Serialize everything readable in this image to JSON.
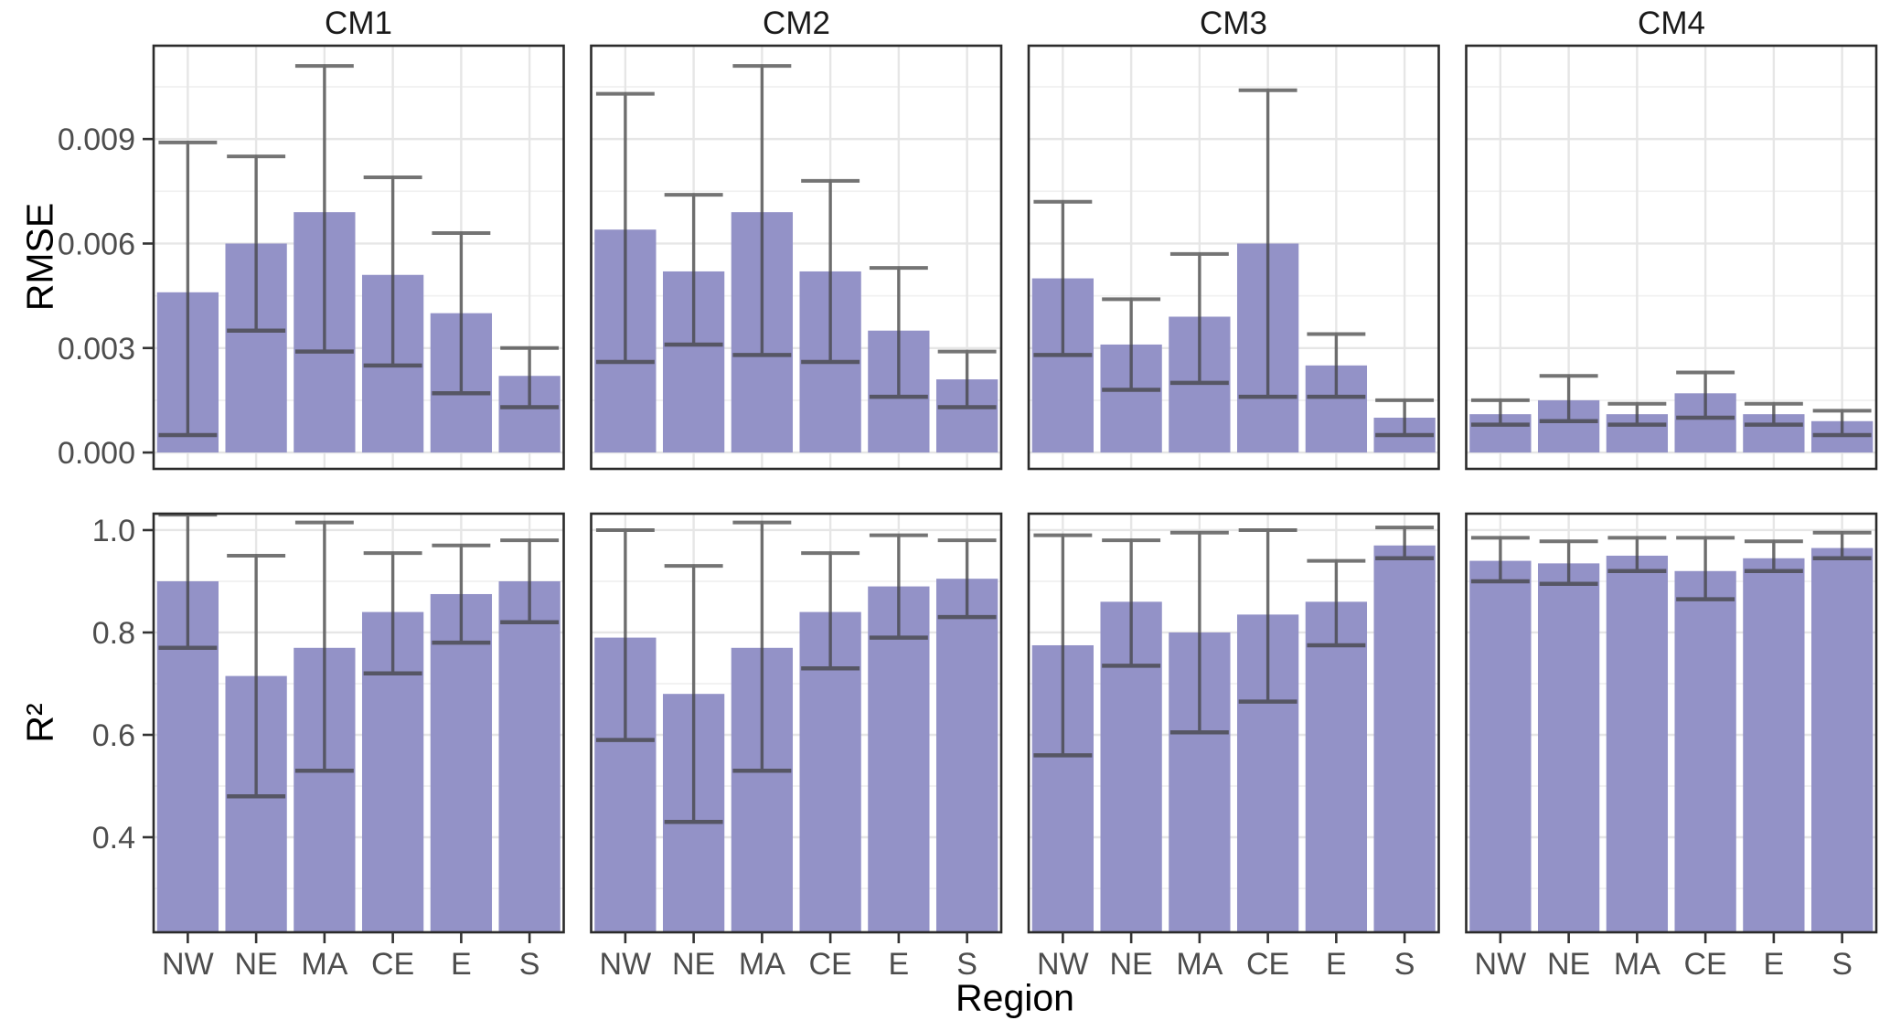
{
  "chart_data": {
    "type": "bar",
    "facet_cols": [
      "CM1",
      "CM2",
      "CM3",
      "CM4"
    ],
    "row_ids": [
      "RMSE",
      "R2"
    ],
    "row_display": [
      "RMSE",
      "R²"
    ],
    "categories": [
      "NW",
      "NE",
      "MA",
      "CE",
      "E",
      "S"
    ],
    "xlabel": "Region",
    "bar_color": "#9392C7",
    "error_color": "#3F3F3F",
    "grid_major_color": "#E6E6E6",
    "grid_minor_color": "#F1F1F1",
    "panel_border_color": "#2B2B2B",
    "tick_color": "#333333",
    "tick_label_color": "#4D4D4D",
    "axes": {
      "RMSE": {
        "tick_labels": [
          "0.000",
          "0.003",
          "0.006",
          "0.009"
        ],
        "ticks": [
          0,
          0.003,
          0.006,
          0.009
        ],
        "minor": [
          0.0015,
          0.0045,
          0.0075,
          0.0105
        ],
        "range": [
          -0.00047,
          0.01168
        ]
      },
      "R2": {
        "tick_labels": [
          "0.4",
          "0.6",
          "0.8",
          "1.0"
        ],
        "ticks": [
          0.4,
          0.6,
          0.8,
          1.0
        ],
        "minor": [
          0.3,
          0.5,
          0.7,
          0.9
        ],
        "range": [
          0.2143,
          1.0321
        ]
      }
    },
    "panels": [
      {
        "row": "RMSE",
        "col": "CM1",
        "values": [
          0.0046,
          0.006,
          0.0069,
          0.0051,
          0.004,
          0.0022
        ],
        "err_low": [
          0.0005,
          0.0035,
          0.0029,
          0.0025,
          0.0017,
          0.0013
        ],
        "err_high": [
          0.0089,
          0.0085,
          0.0111,
          0.0079,
          0.0063,
          0.003
        ]
      },
      {
        "row": "RMSE",
        "col": "CM2",
        "values": [
          0.0064,
          0.0052,
          0.0069,
          0.0052,
          0.0035,
          0.0021
        ],
        "err_low": [
          0.0026,
          0.0031,
          0.0028,
          0.0026,
          0.0016,
          0.0013
        ],
        "err_high": [
          0.0103,
          0.0074,
          0.0111,
          0.0078,
          0.0053,
          0.0029
        ]
      },
      {
        "row": "RMSE",
        "col": "CM3",
        "values": [
          0.005,
          0.0031,
          0.0039,
          0.006,
          0.0025,
          0.001
        ],
        "err_low": [
          0.0028,
          0.0018,
          0.002,
          0.0016,
          0.0016,
          0.0005
        ],
        "err_high": [
          0.0072,
          0.0044,
          0.0057,
          0.0104,
          0.0034,
          0.0015
        ]
      },
      {
        "row": "RMSE",
        "col": "CM4",
        "values": [
          0.0011,
          0.0015,
          0.0011,
          0.0017,
          0.0011,
          0.0009
        ],
        "err_low": [
          0.0008,
          0.0009,
          0.0008,
          0.001,
          0.0008,
          0.0005
        ],
        "err_high": [
          0.0015,
          0.0022,
          0.0014,
          0.0023,
          0.0014,
          0.0012
        ]
      },
      {
        "row": "R2",
        "col": "CM1",
        "values": [
          0.9,
          0.715,
          0.77,
          0.84,
          0.875,
          0.9
        ],
        "err_low": [
          0.77,
          0.48,
          0.53,
          0.72,
          0.78,
          0.82
        ],
        "err_high": [
          1.03,
          0.95,
          1.015,
          0.955,
          0.97,
          0.98
        ]
      },
      {
        "row": "R2",
        "col": "CM2",
        "values": [
          0.79,
          0.68,
          0.77,
          0.84,
          0.89,
          0.905
        ],
        "err_low": [
          0.59,
          0.43,
          0.53,
          0.73,
          0.79,
          0.83
        ],
        "err_high": [
          1.0,
          0.93,
          1.015,
          0.955,
          0.99,
          0.98
        ]
      },
      {
        "row": "R2",
        "col": "CM3",
        "values": [
          0.775,
          0.86,
          0.8,
          0.835,
          0.86,
          0.97
        ],
        "err_low": [
          0.56,
          0.735,
          0.605,
          0.665,
          0.775,
          0.945
        ],
        "err_high": [
          0.99,
          0.98,
          0.995,
          1.0,
          0.94,
          1.005
        ]
      },
      {
        "row": "R2",
        "col": "CM4",
        "values": [
          0.94,
          0.935,
          0.95,
          0.92,
          0.945,
          0.965
        ],
        "err_low": [
          0.9,
          0.895,
          0.92,
          0.865,
          0.92,
          0.945
        ],
        "err_high": [
          0.985,
          0.978,
          0.985,
          0.985,
          0.978,
          0.995
        ]
      }
    ]
  }
}
